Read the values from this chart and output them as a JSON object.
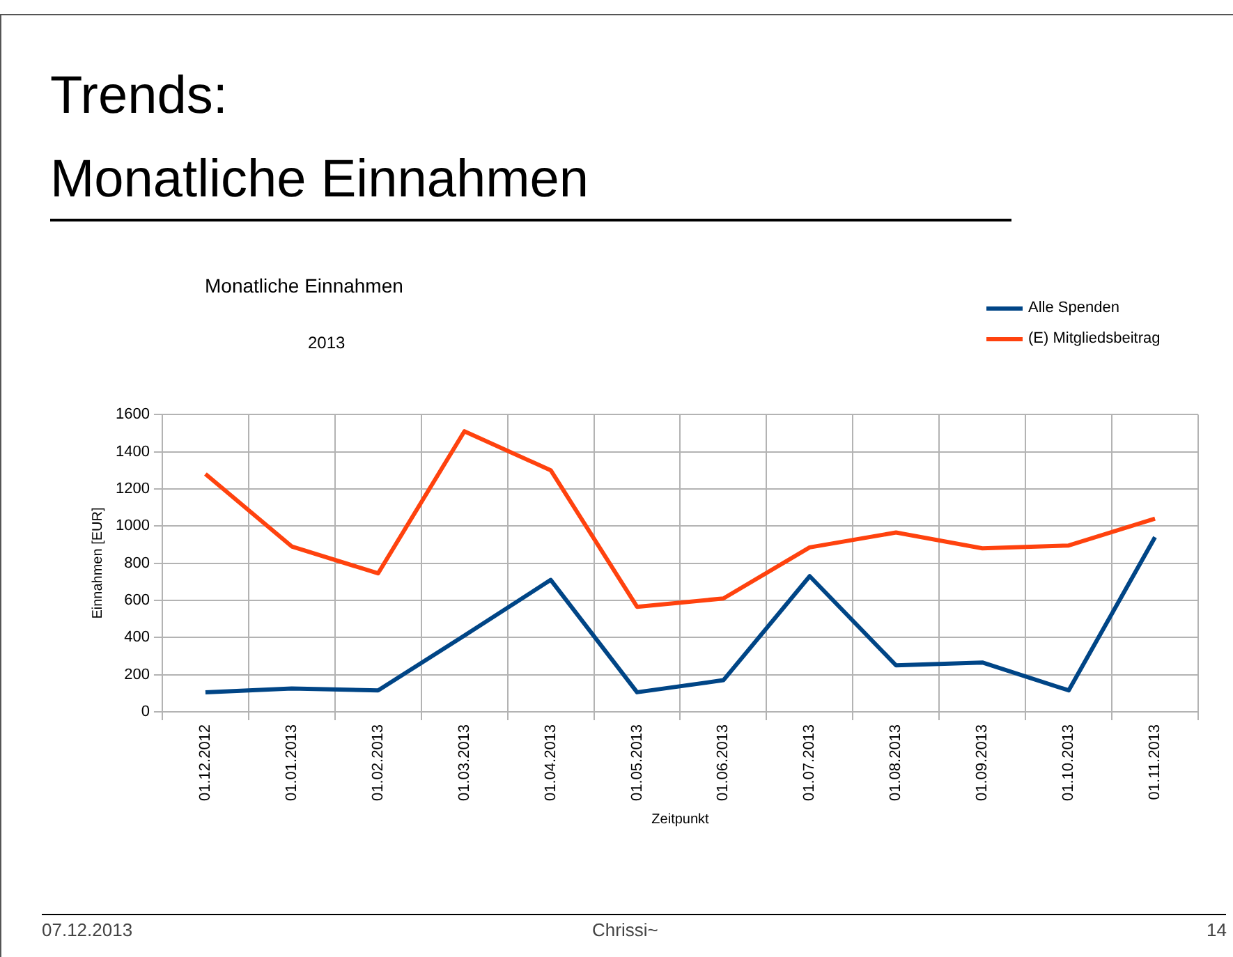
{
  "chart_data": {
    "type": "line",
    "title": "Monatliche Einnahmen",
    "subtitle": "2013",
    "xlabel": "Zeitpunkt",
    "ylabel": "Einnahmen [EUR]",
    "categories": [
      "01.12.2012",
      "01.01.2013",
      "01.02.2013",
      "01.03.2013",
      "01.04.2013",
      "01.05.2013",
      "01.06.2013",
      "01.07.2013",
      "01.08.2013",
      "01.09.2013",
      "01.10.2013",
      "01.11.2013"
    ],
    "series": [
      {
        "name": "Alle Spenden",
        "color": "#004586",
        "values": [
          105,
          125,
          115,
          410,
          710,
          105,
          170,
          730,
          250,
          265,
          115,
          940
        ]
      },
      {
        "name": "(E) Mitgliedsbeitrag",
        "color": "#ff420e",
        "values": [
          1280,
          890,
          745,
          1510,
          1300,
          565,
          610,
          885,
          965,
          880,
          895,
          1040
        ]
      }
    ],
    "ylim": [
      0,
      1600
    ],
    "yticks": [
      0,
      200,
      400,
      600,
      800,
      1000,
      1200,
      1400,
      1600
    ],
    "grid": true,
    "legend": "top right",
    "marker": "none",
    "line_style": "solid",
    "annotations": [
      "Trends:",
      "Monatliche Einnahmen",
      "07.12.2013",
      "Chrissi~",
      "14"
    ]
  }
}
